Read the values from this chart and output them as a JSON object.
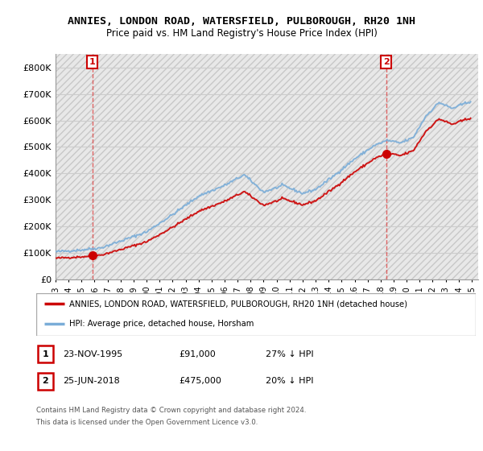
{
  "title": "ANNIES, LONDON ROAD, WATERSFIELD, PULBOROUGH, RH20 1NH",
  "subtitle": "Price paid vs. HM Land Registry's House Price Index (HPI)",
  "ylim": [
    0,
    850000
  ],
  "yticks": [
    0,
    100000,
    200000,
    300000,
    400000,
    500000,
    600000,
    700000,
    800000
  ],
  "ytick_labels": [
    "£0",
    "£100K",
    "£200K",
    "£300K",
    "£400K",
    "£500K",
    "£600K",
    "£700K",
    "£800K"
  ],
  "sale1_t": 1995.833,
  "sale1_price": 91000,
  "sale1_label": "1",
  "sale2_t": 2018.417,
  "sale2_price": 475000,
  "sale2_label": "2",
  "legend_line1": "ANNIES, LONDON ROAD, WATERSFIELD, PULBOROUGH, RH20 1NH (detached house)",
  "legend_line2": "HPI: Average price, detached house, Horsham",
  "table_row1": [
    "1",
    "23-NOV-1995",
    "£91,000",
    "27% ↓ HPI"
  ],
  "table_row2": [
    "2",
    "25-JUN-2018",
    "£475,000",
    "20% ↓ HPI"
  ],
  "footnote1": "Contains HM Land Registry data © Crown copyright and database right 2024.",
  "footnote2": "This data is licensed under the Open Government Licence v3.0.",
  "line_color_red": "#cc0000",
  "line_color_blue": "#7aadd8",
  "dot_color": "#cc0000",
  "grid_color": "#cccccc",
  "hpi_anchors_x": [
    1993.0,
    1995.0,
    1996.5,
    1998.0,
    2000.0,
    2002.0,
    2004.0,
    2006.0,
    2007.5,
    2009.0,
    2010.5,
    2012.0,
    2013.0,
    2014.5,
    2016.0,
    2017.5,
    2018.5,
    2019.5,
    2020.5,
    2021.5,
    2022.5,
    2023.5,
    2024.9
  ],
  "hpi_anchors_y": [
    105000,
    112000,
    120000,
    145000,
    180000,
    245000,
    315000,
    355000,
    395000,
    330000,
    355000,
    325000,
    340000,
    395000,
    455000,
    505000,
    525000,
    515000,
    535000,
    618000,
    668000,
    645000,
    672000
  ]
}
